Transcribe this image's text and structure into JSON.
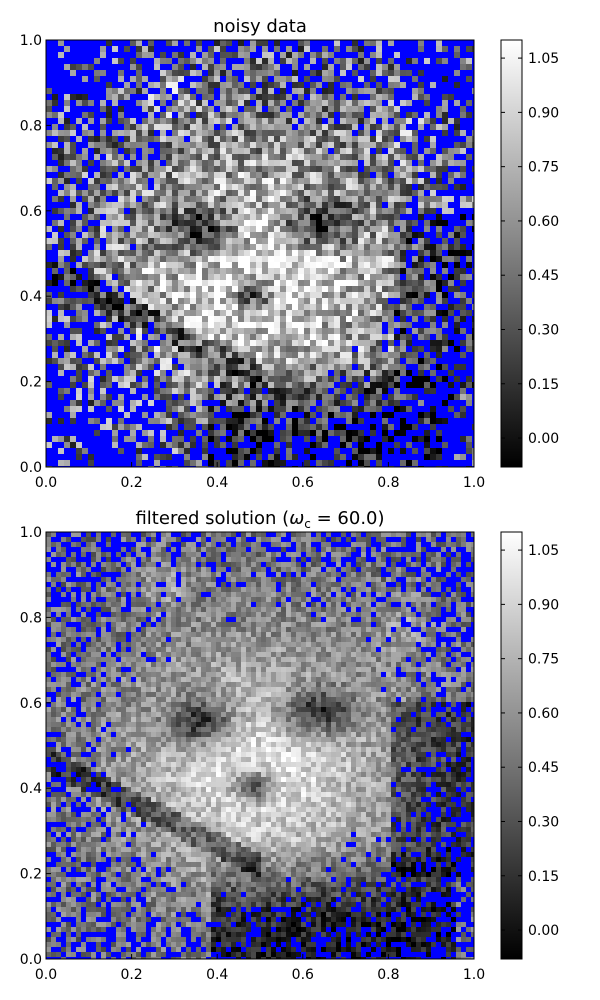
{
  "chart_data": [
    {
      "type": "heatmap",
      "title": "noisy data",
      "xlabel": "",
      "ylabel": "",
      "x_ticks": [
        "0.0",
        "0.2",
        "0.4",
        "0.6",
        "0.8",
        "1.0"
      ],
      "y_ticks": [
        "0.0",
        "0.2",
        "0.4",
        "0.6",
        "0.8",
        "1.0"
      ],
      "xlim": [
        0,
        1
      ],
      "ylim": [
        0,
        1
      ],
      "colorbar": {
        "colormap": "gray",
        "range": [
          -0.08,
          1.1
        ],
        "ticks": [
          "0.00",
          "0.15",
          "0.30",
          "0.45",
          "0.60",
          "0.75",
          "0.90",
          "1.05"
        ]
      },
      "overlay_color": "#0000ff",
      "image_description_semantic": "raccoon-face"
    },
    {
      "type": "heatmap",
      "title": "filtered solution (ωc = 60.0)",
      "title_parts": {
        "prefix": "filtered solution (",
        "symbol": "ω",
        "subscript": "c",
        "suffix": " = 60.0)"
      },
      "xlabel": "",
      "ylabel": "",
      "x_ticks": [
        "0.0",
        "0.2",
        "0.4",
        "0.6",
        "0.8",
        "1.0"
      ],
      "y_ticks": [
        "0.0",
        "0.2",
        "0.4",
        "0.6",
        "0.8",
        "1.0"
      ],
      "xlim": [
        0,
        1
      ],
      "ylim": [
        0,
        1
      ],
      "colorbar": {
        "colormap": "gray",
        "range": [
          -0.08,
          1.1
        ],
        "ticks": [
          "0.00",
          "0.15",
          "0.30",
          "0.45",
          "0.60",
          "0.75",
          "0.90",
          "1.05"
        ]
      },
      "overlay_color": "#0000ff",
      "image_description_semantic": "raccoon-face"
    }
  ]
}
